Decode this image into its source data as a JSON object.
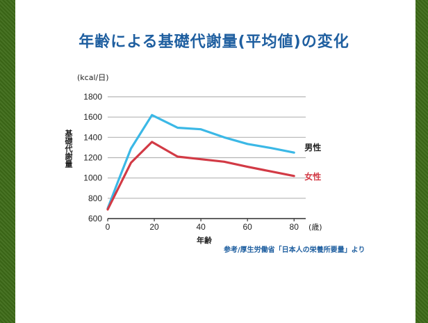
{
  "page": {
    "title": "年齢による基礎代謝量(平均値)の変化",
    "source": "参考/厚生労働省「日本人の栄養所要量」より"
  },
  "chart_data": {
    "type": "line",
    "unit_label": "(kcal/日)",
    "ylabel": "基礎代謝量",
    "xlabel": "年齢",
    "x_unit": "(歳)",
    "xlim": [
      0,
      85
    ],
    "ylim": [
      600,
      1800
    ],
    "yticks": [
      600,
      800,
      1000,
      1200,
      1400,
      1600,
      1800
    ],
    "xticks": [
      0,
      20,
      40,
      60,
      80
    ],
    "grid": true,
    "legend": "inline-right",
    "series": [
      {
        "name": "男性",
        "color": "#3bb8e6",
        "x": [
          0,
          5,
          10,
          19,
          30,
          40,
          50,
          60,
          70,
          80
        ],
        "values": [
          700,
          1000,
          1290,
          1620,
          1495,
          1480,
          1400,
          1335,
          1295,
          1250
        ]
      },
      {
        "name": "女性",
        "color": "#d23a45",
        "x": [
          0,
          5,
          10,
          19,
          30,
          40,
          50,
          60,
          70,
          80
        ],
        "values": [
          690,
          920,
          1150,
          1355,
          1210,
          1185,
          1160,
          1110,
          1065,
          1020
        ]
      }
    ]
  }
}
